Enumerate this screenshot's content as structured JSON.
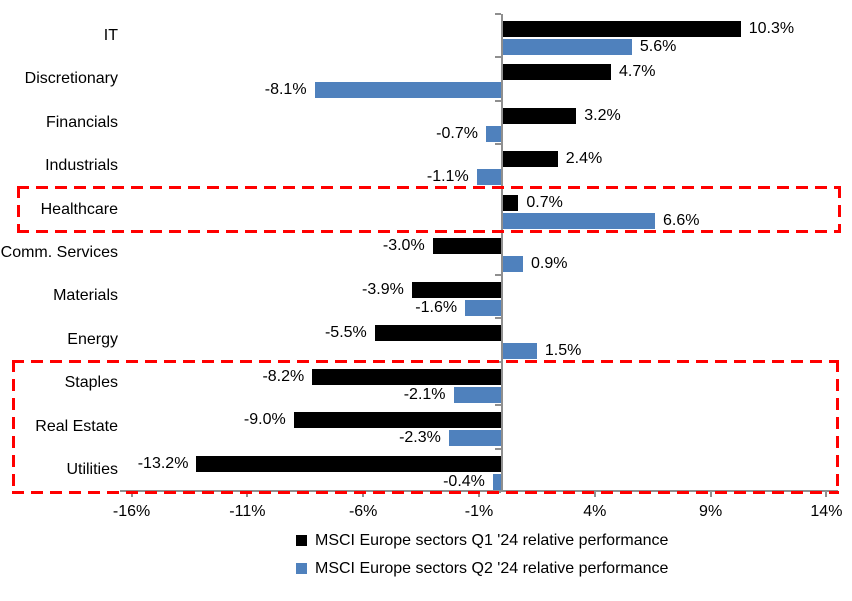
{
  "chart_data": {
    "type": "bar",
    "orientation": "horizontal",
    "categories": [
      "IT",
      "Discretionary",
      "Financials",
      "Industrials",
      "Healthcare",
      "Comm. Services",
      "Materials",
      "Energy",
      "Staples",
      "Real Estate",
      "Utilities"
    ],
    "series": [
      {
        "name": "MSCI Europe sectors Q1 '24 relative performance",
        "color": "#000000",
        "values": [
          10.3,
          4.7,
          3.2,
          2.4,
          0.7,
          -3.0,
          -3.9,
          -5.5,
          -8.2,
          -9.0,
          -13.2
        ],
        "labels": [
          "10.3%",
          "4.7%",
          "3.2%",
          "2.4%",
          "0.7%",
          "-3.0%",
          "-3.9%",
          "-5.5%",
          "-8.2%",
          "-9.0%",
          "-13.2%"
        ]
      },
      {
        "name": "MSCI Europe sectors Q2 '24 relative performance",
        "color": "#4F81BD",
        "values": [
          5.6,
          -8.1,
          -0.7,
          -1.1,
          6.6,
          0.9,
          -1.6,
          1.5,
          -2.1,
          -2.3,
          -0.4
        ],
        "labels": [
          "5.6%",
          "-8.1%",
          "-0.7%",
          "-1.1%",
          "6.6%",
          "0.9%",
          "-1.6%",
          "1.5%",
          "-2.1%",
          "-2.3%",
          "-0.4%"
        ]
      }
    ],
    "x_axis": {
      "min": -16.5,
      "max": 14.5,
      "ticks": [
        {
          "value": -16,
          "label": "-16%"
        },
        {
          "value": -11,
          "label": "-11%"
        },
        {
          "value": -6,
          "label": "-6%"
        },
        {
          "value": -1,
          "label": "-1%"
        },
        {
          "value": 4,
          "label": "4%"
        },
        {
          "value": 9,
          "label": "9%"
        },
        {
          "value": 14,
          "label": "14%"
        }
      ]
    },
    "highlights": [
      {
        "categories": [
          "Healthcare"
        ],
        "color": "#FF0000",
        "style": "dashed"
      },
      {
        "categories": [
          "Staples",
          "Real Estate",
          "Utilities"
        ],
        "color": "#FF0000",
        "style": "dashed"
      }
    ],
    "legend_position": "bottom",
    "grid": false,
    "axis_color": "#8F8F8F"
  }
}
